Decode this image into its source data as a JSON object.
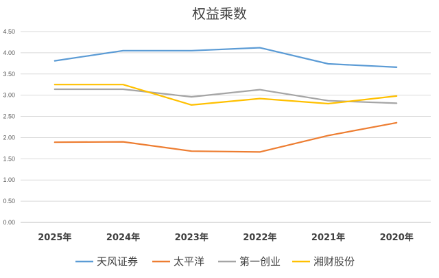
{
  "chart_data": {
    "type": "line",
    "title": "权益乘数",
    "xlabel": "",
    "ylabel": "",
    "categories": [
      "2025年",
      "2024年",
      "2023年",
      "2022年",
      "2021年",
      "2020年"
    ],
    "ylim": [
      0,
      4.5
    ],
    "ytick_step": 0.5,
    "ytick_labels": [
      "0.00",
      "0.50",
      "1.00",
      "1.50",
      "2.00",
      "2.50",
      "3.00",
      "3.50",
      "4.00",
      "4.50"
    ],
    "grid": true,
    "legend_position": "bottom",
    "series": [
      {
        "name": "天风证券",
        "color": "#5B9BD5",
        "values": [
          3.81,
          4.05,
          4.05,
          4.12,
          3.74,
          3.66
        ]
      },
      {
        "name": "太平洋",
        "color": "#ED7D31",
        "values": [
          1.89,
          1.9,
          1.68,
          1.66,
          2.05,
          2.35
        ]
      },
      {
        "name": "第一创业",
        "color": "#A5A5A5",
        "values": [
          3.14,
          3.14,
          2.96,
          3.13,
          2.87,
          2.81
        ]
      },
      {
        "name": "湘财股份",
        "color": "#FFC000",
        "values": [
          3.25,
          3.25,
          2.77,
          2.92,
          2.8,
          2.98
        ]
      }
    ]
  }
}
